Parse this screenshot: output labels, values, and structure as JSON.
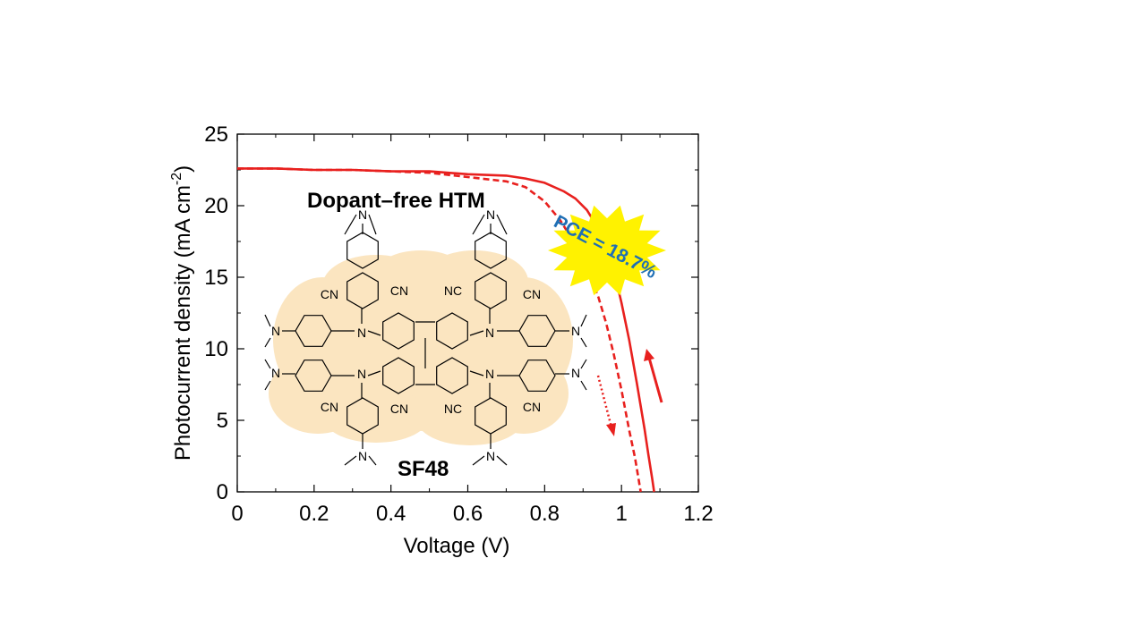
{
  "chart_data": {
    "type": "line",
    "title": "",
    "xlabel": "Voltage (V)",
    "ylabel": "Photocurrent density (mA cm",
    "ylabel_sup": "-2",
    "ylabel_close": ")",
    "xlim": [
      0,
      1.2
    ],
    "ylim": [
      0,
      25
    ],
    "xticks": [
      "0",
      "0.2",
      "0.4",
      "0.6",
      "0.8",
      "1",
      "1.2"
    ],
    "yticks": [
      "0",
      "5",
      "10",
      "15",
      "20",
      "25"
    ],
    "grid": false,
    "series": [
      {
        "style": "solid",
        "color": "#e8201e",
        "x": [
          0,
          0.1,
          0.2,
          0.3,
          0.4,
          0.5,
          0.6,
          0.7,
          0.75,
          0.8,
          0.85,
          0.88,
          0.91,
          0.94,
          0.96,
          0.98,
          1.0,
          1.02,
          1.04,
          1.06,
          1.07,
          1.08,
          1.085
        ],
        "y": [
          22.6,
          22.6,
          22.5,
          22.5,
          22.4,
          22.4,
          22.2,
          22.1,
          21.9,
          21.6,
          21.0,
          20.5,
          19.7,
          18.4,
          17.1,
          15.5,
          13.2,
          10.6,
          7.6,
          4.4,
          2.6,
          0.9,
          0
        ]
      },
      {
        "style": "dashed",
        "color": "#e8201e",
        "x": [
          0,
          0.1,
          0.2,
          0.3,
          0.4,
          0.5,
          0.6,
          0.7,
          0.75,
          0.8,
          0.84,
          0.88,
          0.91,
          0.94,
          0.96,
          0.98,
          1.0,
          1.02,
          1.035,
          1.045,
          1.05
        ],
        "y": [
          22.6,
          22.6,
          22.5,
          22.5,
          22.4,
          22.3,
          22.0,
          21.7,
          21.3,
          20.3,
          19.0,
          17.3,
          15.6,
          13.6,
          11.8,
          9.6,
          7.1,
          4.3,
          2.4,
          0.8,
          0
        ]
      }
    ],
    "annotations": {
      "htm_label": "Dopant–free HTM",
      "pce_label": "PCE = 18.7%",
      "molecule_name": "SF48",
      "atom_N": "N",
      "group_CN": "CN",
      "group_NC": "NC"
    },
    "colors": {
      "curve": "#e8201e",
      "burst_fill": "#fff200",
      "pce_text": "#1f6fb5",
      "molecule_cloud": "#fbe5c0"
    }
  }
}
